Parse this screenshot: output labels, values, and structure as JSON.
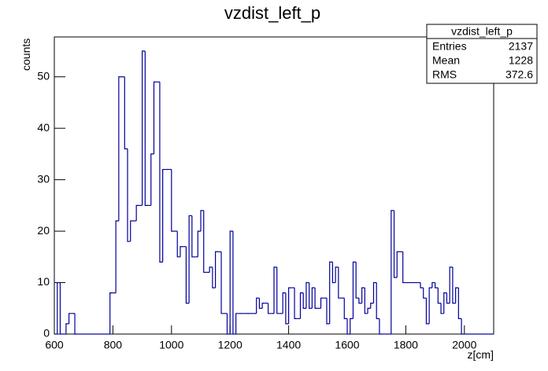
{
  "chart_data": {
    "type": "histogram",
    "title": "vzdist_left_p",
    "x_label": "z[cm]",
    "y_label": "counts",
    "bins": [
      600,
      610,
      620,
      630,
      640,
      650,
      660,
      670,
      680,
      690,
      700,
      710,
      720,
      730,
      740,
      750,
      760,
      770,
      780,
      790,
      800,
      810,
      820,
      830,
      840,
      850,
      860,
      870,
      880,
      890,
      900,
      910,
      920,
      930,
      940,
      950,
      960,
      970,
      980,
      990,
      1000,
      1010,
      1020,
      1030,
      1040,
      1050,
      1060,
      1070,
      1080,
      1090,
      1100,
      1110,
      1120,
      1130,
      1140,
      1150,
      1160,
      1170,
      1180,
      1190,
      1200,
      1210,
      1220,
      1230,
      1240,
      1250,
      1260,
      1270,
      1280,
      1290,
      1300,
      1310,
      1320,
      1330,
      1340,
      1350,
      1360,
      1370,
      1380,
      1390,
      1400,
      1410,
      1420,
      1430,
      1440,
      1450,
      1460,
      1470,
      1480,
      1490,
      1500,
      1510,
      1520,
      1530,
      1540,
      1550,
      1560,
      1570,
      1580,
      1590,
      1600,
      1610,
      1620,
      1630,
      1640,
      1650,
      1660,
      1670,
      1680,
      1690,
      1700,
      1710,
      1720,
      1730,
      1740,
      1750,
      1760,
      1770,
      1780,
      1790,
      1800,
      1810,
      1820,
      1830,
      1840,
      1850,
      1860,
      1870,
      1880,
      1890,
      1900,
      1910,
      1920,
      1930,
      1940,
      1950,
      1960,
      1970,
      1980,
      1990,
      2000,
      2010,
      2020,
      2030,
      2040,
      2050,
      2060,
      2070,
      2080,
      2090,
      2100
    ],
    "values": [
      0,
      10,
      0,
      0,
      2,
      4,
      4,
      0,
      0,
      0,
      0,
      0,
      0,
      0,
      0,
      0,
      0,
      0,
      0,
      8,
      8,
      22,
      50,
      50,
      36,
      18,
      22,
      22,
      25,
      25,
      55,
      25,
      25,
      35,
      49,
      49,
      14,
      32,
      32,
      32,
      20,
      20,
      15,
      17,
      17,
      6,
      23,
      15,
      15,
      20,
      24,
      12,
      12,
      13,
      9,
      16,
      16,
      4,
      4,
      0,
      20,
      0,
      4,
      4,
      4,
      4,
      4,
      4,
      4,
      7,
      5,
      6,
      6,
      4,
      4,
      13,
      4,
      4,
      8,
      2,
      9,
      9,
      3,
      3,
      8,
      5,
      10,
      5,
      9,
      5,
      5,
      7,
      7,
      2,
      14,
      10,
      13,
      7,
      7,
      3,
      0,
      3,
      14,
      7,
      6,
      9,
      4,
      5,
      6,
      10,
      3,
      0,
      0,
      0,
      0,
      24,
      11,
      16,
      16,
      10,
      10,
      10,
      10,
      10,
      10,
      9,
      7,
      2,
      9,
      10,
      9,
      6,
      4,
      8,
      6,
      13,
      6,
      9,
      3,
      0,
      0,
      0,
      0,
      0,
      0,
      0,
      0,
      0,
      0,
      0
    ],
    "color": "#000099",
    "xlim": [
      600,
      2100
    ],
    "ylim": [
      0,
      57.75
    ],
    "xticks": [
      600,
      800,
      1000,
      1200,
      1400,
      1600,
      1800,
      2000
    ],
    "yticks": [
      0,
      10,
      20,
      30,
      40,
      50
    ],
    "stats": {
      "title": "vzdist_left_p",
      "rows": [
        [
          "Entries",
          "2137"
        ],
        [
          "Mean",
          "1228"
        ],
        [
          "RMS",
          "372.6"
        ]
      ]
    }
  }
}
